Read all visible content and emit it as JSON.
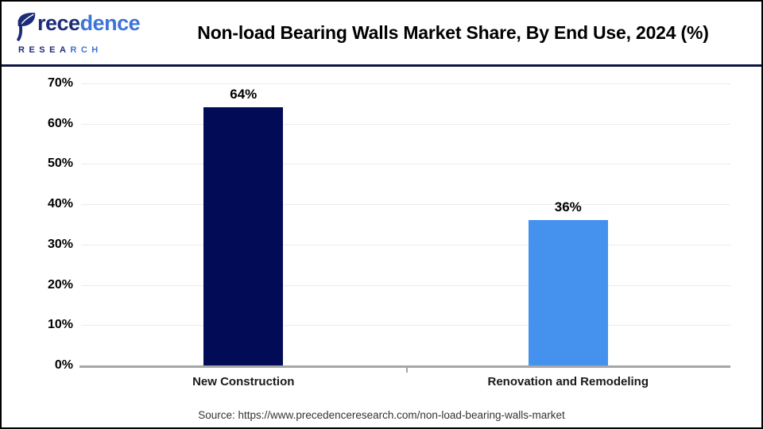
{
  "logo": {
    "brand_part1": "rece",
    "brand_part2": "dence",
    "subbrand_part1": "RESEA",
    "subbrand_part2": "RCH"
  },
  "header": {
    "title": "Non-load Bearing Walls Market Share, By End Use, 2024 (%)"
  },
  "chart_data": {
    "type": "bar",
    "title": "Non-load Bearing Walls Market Share, By End Use, 2024 (%)",
    "categories": [
      "New Construction",
      "Renovation and Remodeling"
    ],
    "values": [
      64,
      36
    ],
    "value_labels": [
      "64%",
      "36%"
    ],
    "bar_colors": [
      "#020b55",
      "#4492ed"
    ],
    "xlabel": "",
    "ylabel": "",
    "ylim": [
      0,
      70
    ],
    "ytick_step": 10,
    "ytick_suffix": "%",
    "grid": true,
    "legend": false
  },
  "footer": {
    "source": "Source: https://www.precedenceresearch.com/non-load-bearing-walls-market"
  },
  "colors": {
    "bar_dark_navy": "#020b55",
    "bar_blue": "#4492ed",
    "header_divider_navy": "#0d1540",
    "gridline_gray": "#ececec",
    "axis_gray": "#a6a6a6",
    "logo_navy": "#1d2c77",
    "logo_blue": "#3d74d8"
  }
}
